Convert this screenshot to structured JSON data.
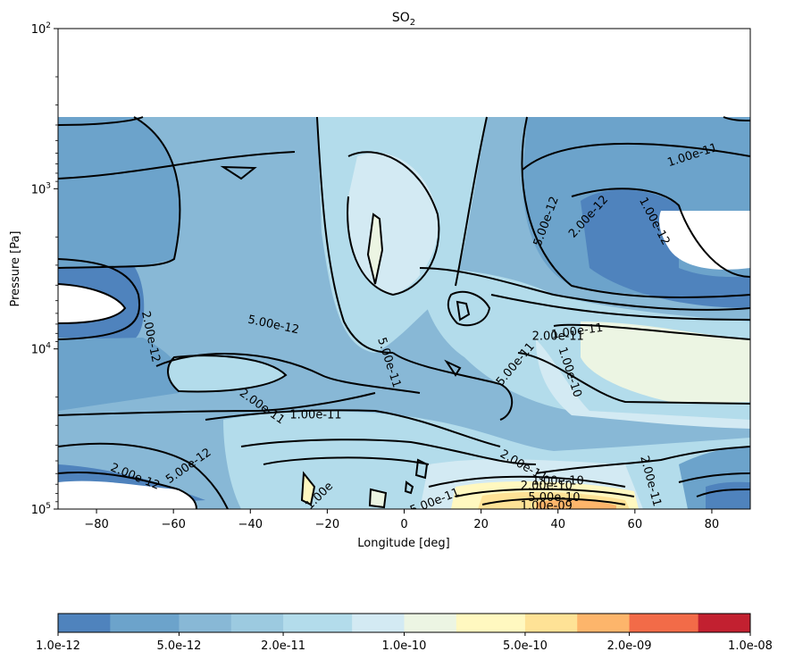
{
  "chart_data": {
    "type": "heatmap",
    "title_main": "SO",
    "title_sub": "2",
    "xlabel": "Longitude [deg]",
    "ylabel": "Pressure [Pa]",
    "xlim": [
      -90,
      90
    ],
    "ylim_pressure_Pa": [
      100000,
      100
    ],
    "y_scale": "log",
    "y_inverted": true,
    "x_ticks": [
      -80,
      -60,
      -40,
      -20,
      0,
      20,
      40,
      60,
      80
    ],
    "y_ticks": [
      {
        "base": "10",
        "exp": "2",
        "value": 100
      },
      {
        "base": "10",
        "exp": "3",
        "value": 1000
      },
      {
        "base": "10",
        "exp": "4",
        "value": 10000
      },
      {
        "base": "10",
        "exp": "5",
        "value": 100000
      }
    ],
    "data_top_pressure_Pa": 360,
    "colorbar": {
      "scale": "log",
      "levels": [
        1e-12,
        2e-12,
        5e-12,
        1e-11,
        2e-11,
        5e-11,
        1e-10,
        2e-10,
        5e-10,
        1e-09,
        2e-09,
        5e-09,
        1e-08
      ],
      "colors": [
        "#4f83bd",
        "#6ca3cb",
        "#88b8d6",
        "#9ccae0",
        "#b3dceb",
        "#d3eaf3",
        "#ecf5e3",
        "#fff8c0",
        "#fee296",
        "#fdb56b",
        "#f26b48",
        "#c22030"
      ],
      "tick_labels": [
        "1.0e-12",
        "5.0e-12",
        "2.0e-11",
        "1.0e-10",
        "5.0e-10",
        "2.0e-09",
        "1.0e-08"
      ],
      "tick_values": [
        1e-12,
        5e-12,
        2e-11,
        1e-10,
        5e-10,
        2e-09,
        1e-08
      ]
    },
    "contour_labels": [
      {
        "text": "1.00e-11",
        "lon": 75,
        "p": 620,
        "angle": 18
      },
      {
        "text": "5.00e-12",
        "lon": 37,
        "p": 1600,
        "angle": 70
      },
      {
        "text": "2.00e-12",
        "lon": 48,
        "p": 1500,
        "angle": 48
      },
      {
        "text": "1.00e-12",
        "lon": 65,
        "p": 1600,
        "angle": -62
      },
      {
        "text": "2.00e-12",
        "lon": -66,
        "p": 8400,
        "angle": -78
      },
      {
        "text": "5.00e-12",
        "lon": -34,
        "p": 7100,
        "angle": -12
      },
      {
        "text": "1.00e-11",
        "lon": 45,
        "p": 7800,
        "angle": 8
      },
      {
        "text": "2.00e-11",
        "lon": 40,
        "p": 8400,
        "angle": 0
      },
      {
        "text": "5.00e-11",
        "lon": -4,
        "p": 12200,
        "angle": -72
      },
      {
        "text": "5.00e-11",
        "lon": 29,
        "p": 12500,
        "angle": 50
      },
      {
        "text": "1.00e-10",
        "lon": 43,
        "p": 14000,
        "angle": -72
      },
      {
        "text": "2.00e-11",
        "lon": -37,
        "p": 23000,
        "angle": -35
      },
      {
        "text": "1.00e-11",
        "lon": -23,
        "p": 26000,
        "angle": 0
      },
      {
        "text": "5.00e-12",
        "lon": -56,
        "p": 54000,
        "angle": 35
      },
      {
        "text": "2.00e-12",
        "lon": -70,
        "p": 63000,
        "angle": -22
      },
      {
        "text": "2.00e-11",
        "lon": 31,
        "p": 54000,
        "angle": -30
      },
      {
        "text": "1.00e-10",
        "lon": 40,
        "p": 67000,
        "angle": 0
      },
      {
        "text": "2.00e-10",
        "lon": 37,
        "p": 72000,
        "angle": 0
      },
      {
        "text": "5.00e-10",
        "lon": 39,
        "p": 85000,
        "angle": 0
      },
      {
        "text": "1.00e-09",
        "lon": 37,
        "p": 96000,
        "angle": 0
      },
      {
        "text": "2.00e-11",
        "lon": 64,
        "p": 67000,
        "angle": -75
      },
      {
        "text": "1.00e",
        "lon": -22,
        "p": 83000,
        "angle": 45
      },
      {
        "text": "5.00e-11",
        "lon": 8,
        "p": 90000,
        "angle": 22
      }
    ]
  }
}
